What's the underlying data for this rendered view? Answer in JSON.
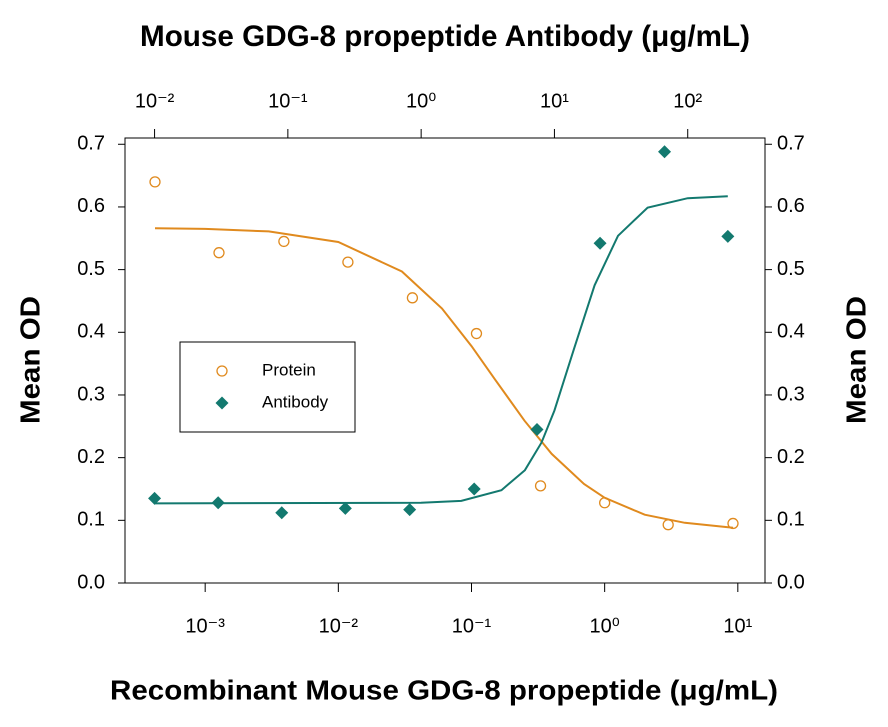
{
  "chart_data": {
    "type": "scatter",
    "title": "Mouse GDG-8 propeptide Antibody (μg/mL)",
    "x_label": "Recombinant Mouse GDG-8 propeptide (μg/mL)",
    "y_label": "Mean OD",
    "y2_label": "Mean OD",
    "xscale": "log",
    "x2scale": "log",
    "xlim": [
      0.00025,
      16
    ],
    "xticks": [
      {
        "value": 0.001,
        "label": "10⁻³"
      },
      {
        "value": 0.01,
        "label": "10⁻²"
      },
      {
        "value": 0.1,
        "label": "10⁻¹"
      },
      {
        "value": 1,
        "label": "10⁰"
      },
      {
        "value": 10,
        "label": "10¹"
      }
    ],
    "x2lim": [
      0.006,
      380
    ],
    "x2ticks": [
      {
        "value": 0.01,
        "label": "10⁻²"
      },
      {
        "value": 0.1,
        "label": "10⁻¹"
      },
      {
        "value": 1,
        "label": "10⁰"
      },
      {
        "value": 10,
        "label": "10¹"
      },
      {
        "value": 100,
        "label": "10²"
      }
    ],
    "ylim": [
      0,
      0.71
    ],
    "yticks": [
      {
        "value": 0,
        "label": "0.0"
      },
      0.1,
      0.2,
      0.3,
      0.4,
      0.5,
      0.6,
      0.7
    ],
    "y2lim": [
      0,
      0.71
    ],
    "y2ticks": [
      {
        "value": 0,
        "label": "0.0"
      },
      0.1,
      0.2,
      0.3,
      0.4,
      0.5,
      0.6,
      0.7
    ],
    "legend_position": "center-left",
    "series": [
      {
        "name": "Protein",
        "color": "#e08a1e",
        "marker": "open-circle",
        "x_axis": "x",
        "x": [
          0.00042,
          0.00127,
          0.0039,
          0.0118,
          0.036,
          0.109,
          0.33,
          1.0,
          3.0,
          9.2
        ],
        "values": [
          0.64,
          0.527,
          0.545,
          0.512,
          0.455,
          0.398,
          0.155,
          0.128,
          0.093,
          0.095
        ],
        "fit": {
          "x": [
            0.00042,
            0.001,
            0.003,
            0.01,
            0.03,
            0.06,
            0.1,
            0.15,
            0.25,
            0.4,
            0.7,
            1,
            2,
            4,
            9.2
          ],
          "values": [
            0.566,
            0.565,
            0.561,
            0.544,
            0.497,
            0.438,
            0.378,
            0.325,
            0.259,
            0.206,
            0.158,
            0.136,
            0.109,
            0.096,
            0.088
          ]
        }
      },
      {
        "name": "Antibody",
        "color": "#13796f",
        "marker": "diamond",
        "x_axis": "x2",
        "x": [
          0.01,
          0.03,
          0.09,
          0.27,
          0.82,
          2.5,
          7.4,
          22,
          67,
          200
        ],
        "values": [
          0.135,
          0.128,
          0.112,
          0.119,
          0.117,
          0.15,
          0.245,
          0.542,
          0.688,
          0.553
        ],
        "fit": {
          "x": [
            0.01,
            1,
            2,
            4,
            6,
            8,
            10,
            14,
            20,
            30,
            50,
            100,
            200
          ],
          "values": [
            0.127,
            0.128,
            0.131,
            0.148,
            0.18,
            0.224,
            0.275,
            0.373,
            0.475,
            0.554,
            0.599,
            0.614,
            0.617
          ]
        }
      }
    ]
  }
}
